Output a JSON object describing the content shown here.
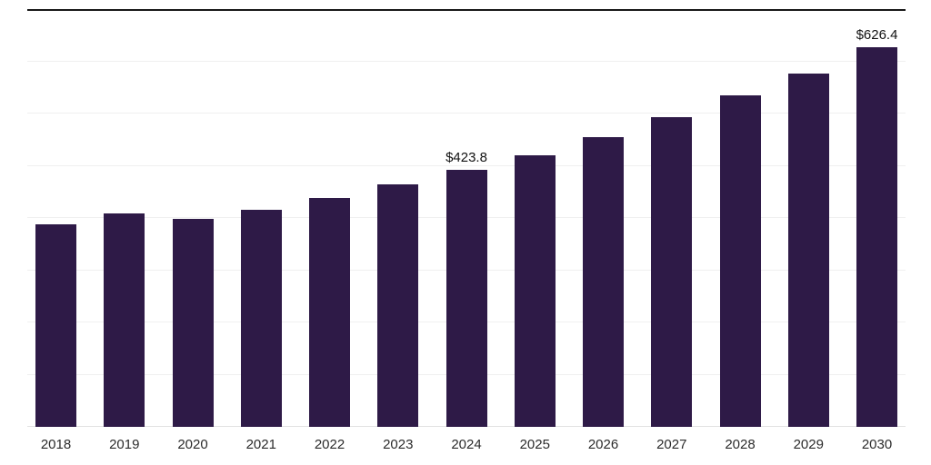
{
  "chart_data": {
    "type": "bar",
    "categories": [
      "2018",
      "2019",
      "2020",
      "2021",
      "2022",
      "2023",
      "2024",
      "2025",
      "2026",
      "2027",
      "2028",
      "2029",
      "2030"
    ],
    "values": [
      335,
      352,
      344,
      359,
      378,
      400,
      423.8,
      449,
      478,
      512,
      548,
      583,
      626.4
    ],
    "annotations": [
      {
        "category": "2024",
        "label": "$423.8"
      },
      {
        "category": "2030",
        "label": "$626.4"
      }
    ],
    "title": "",
    "xlabel": "",
    "ylabel": "",
    "ylim": [
      0,
      690
    ],
    "gridline_divisions": 8,
    "grid": true,
    "legend": false,
    "bar_color": "#2e1a47",
    "gridline_color": "#f0f0f0",
    "axis_line_color": "#e2e2e2",
    "top_border_color": "#181818",
    "label_color": "#111111",
    "tick_color": "#2b2b2b"
  }
}
